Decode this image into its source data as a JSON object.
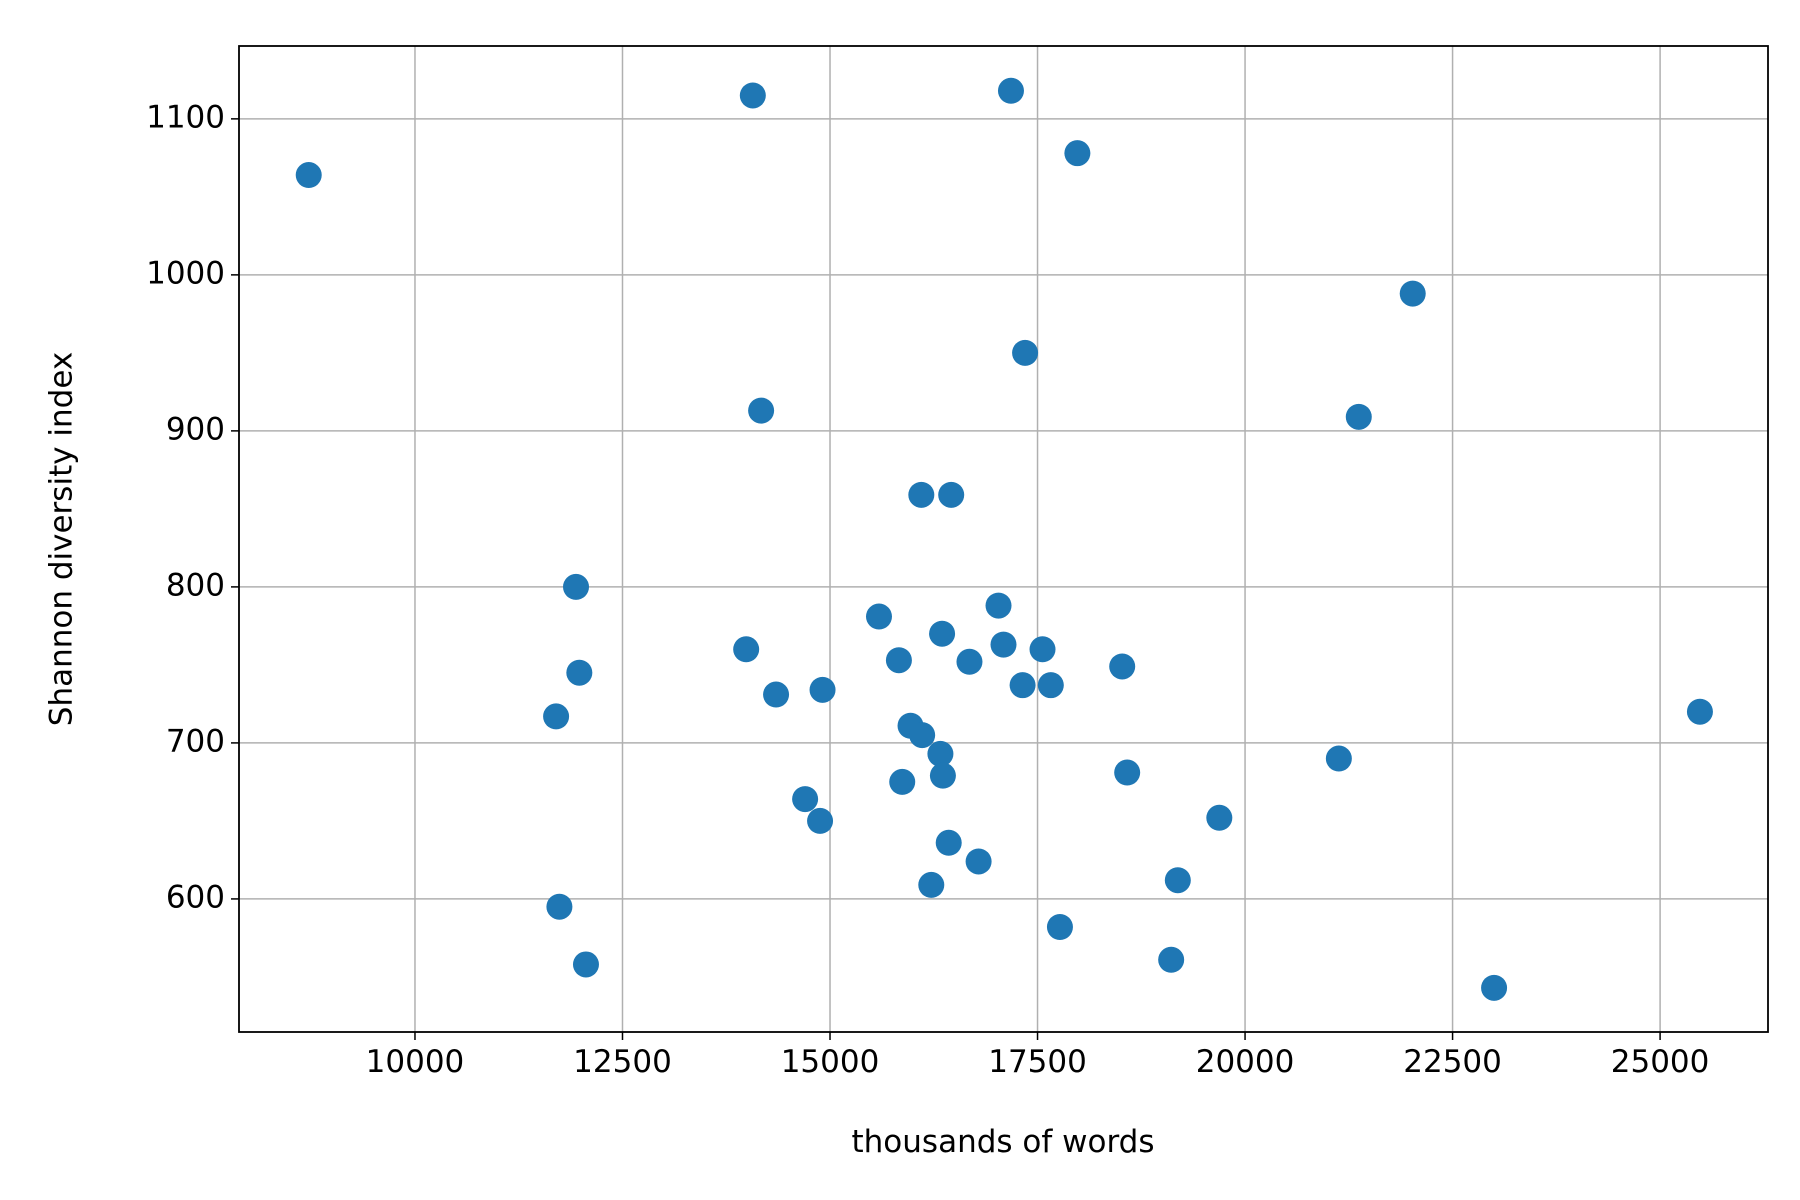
{
  "chart_data": {
    "type": "scatter",
    "xlabel": "thousands of words",
    "ylabel": "Shannon diversity index",
    "color": "#1f77b4",
    "grid": true,
    "xlim": [
      7880,
      26300
    ],
    "ylim": [
      514.7,
      1146.7
    ],
    "xticks": [
      10000,
      12500,
      15000,
      17500,
      20000,
      22500,
      25000
    ],
    "yticks": [
      600,
      700,
      800,
      900,
      1000,
      1100
    ],
    "x": [
      8720,
      14070,
      17180,
      17980,
      22020,
      17350,
      14170,
      21370,
      16100,
      16460,
      11940,
      17030,
      15590,
      16350,
      17090,
      13990,
      17560,
      15830,
      16680,
      18520,
      11980,
      17320,
      17660,
      14910,
      14350,
      25480,
      11700,
      15970,
      16110,
      16330,
      21130,
      18580,
      16360,
      15870,
      14700,
      19690,
      14880,
      16430,
      16790,
      19190,
      16220,
      11740,
      17770,
      19110,
      12060,
      23000
    ],
    "values": [
      1064,
      1115,
      1118,
      1078,
      988,
      950,
      913,
      909,
      859,
      859,
      800,
      788,
      781,
      770,
      763,
      760,
      760,
      753,
      752,
      749,
      745,
      737,
      737,
      734,
      731,
      720,
      717,
      711,
      705,
      693,
      690,
      681,
      679,
      675,
      664,
      652,
      650,
      636,
      624,
      612,
      609,
      595,
      582,
      561,
      558,
      543
    ]
  }
}
